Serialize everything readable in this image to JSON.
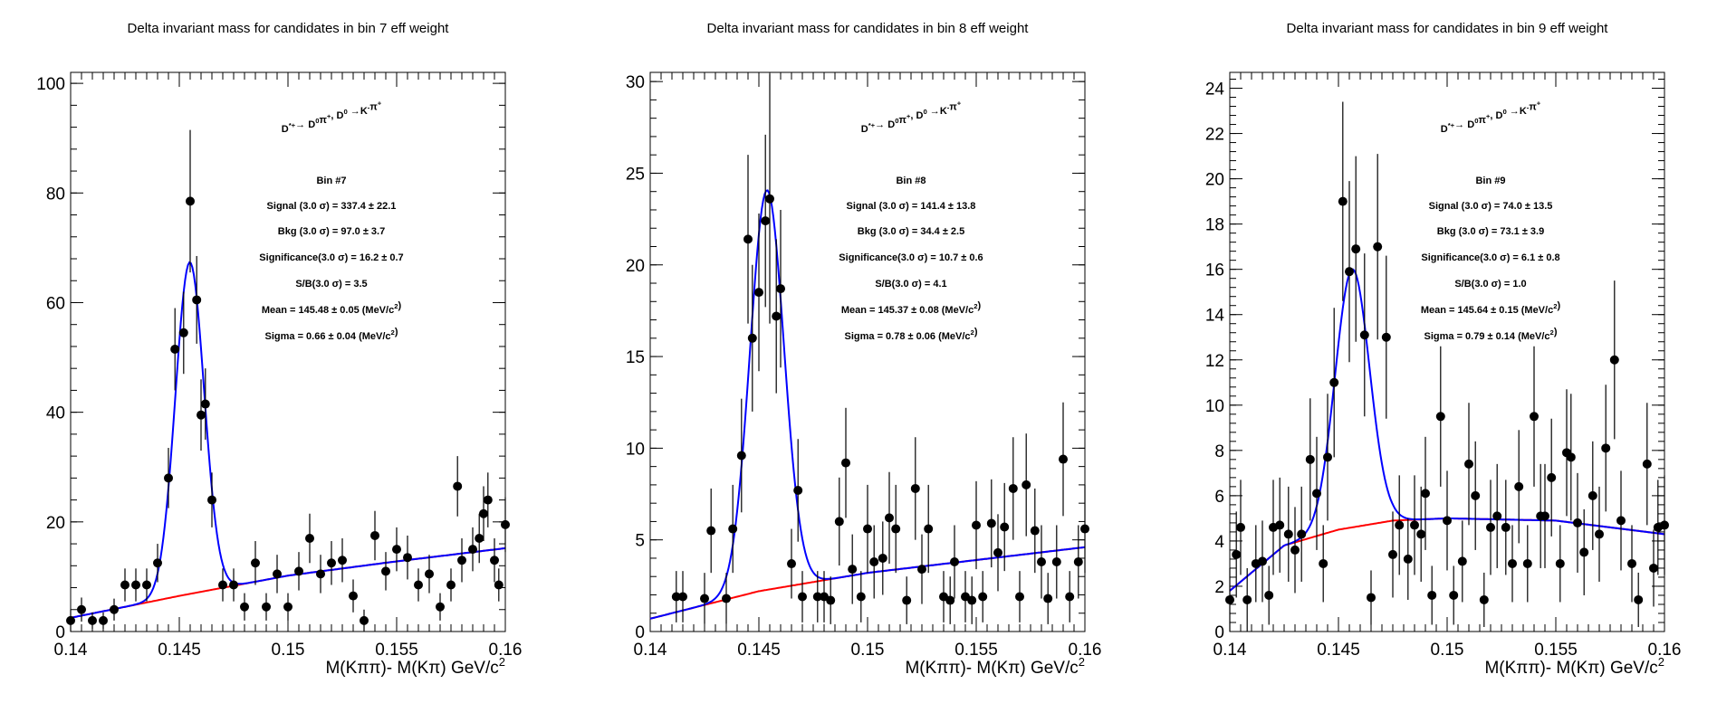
{
  "chart_data": [
    {
      "type": "scatter",
      "title": "Delta invariant mass for candidates in bin 7 eff weight",
      "xlabel": "M(Kππ)- M(Kπ) GeV/c",
      "xlabel_sup": "2",
      "xlim": [
        0.14,
        0.16
      ],
      "ylim": [
        0,
        102
      ],
      "x_ticks": [
        0.14,
        0.145,
        0.15,
        0.155,
        0.16
      ],
      "x_tick_labels": [
        "0.14",
        "0.145",
        "0.15",
        "0.155",
        "0.16"
      ],
      "y_ticks": [
        0,
        20,
        40,
        60,
        80,
        100
      ],
      "y_tick_labels": [
        "0",
        "20",
        "40",
        "60",
        "80",
        "100"
      ],
      "legend": {
        "decay": "D*+→ D0π+, D0 →K-π+",
        "bin": "Bin #7",
        "signal": "Signal (3.0 σ) =  337.4 ± 22.1",
        "bkg": "Bkg (3.0 σ) =  97.0 ± 3.7",
        "significance": "Significance(3.0 σ) =  16.2 ± 0.7",
        "sb": "S/B(3.0 σ) =  3.5",
        "mean": "Mean = 145.48 ± 0.05 (MeV/c2)",
        "sigma": "Sigma = 0.66 ± 0.04 (MeV/c2)"
      },
      "fit": {
        "mean": 0.14548,
        "sigma": 0.00066,
        "amp": 60.5,
        "bkg": [
          [
            0.14,
            2.5
          ],
          [
            0.145,
            6.5
          ],
          [
            0.15,
            10.2
          ],
          [
            0.155,
            12.8
          ],
          [
            0.16,
            15.2
          ]
        ]
      },
      "points": [
        {
          "x": 0.14,
          "y": 2.0,
          "e": 2.0
        },
        {
          "x": 0.1405,
          "y": 4.0,
          "e": 2.2
        },
        {
          "x": 0.141,
          "y": 2.0,
          "e": 1.5
        },
        {
          "x": 0.1415,
          "y": 2.0,
          "e": 1.5
        },
        {
          "x": 0.142,
          "y": 4.0,
          "e": 2.0
        },
        {
          "x": 0.1425,
          "y": 8.5,
          "e": 3.0
        },
        {
          "x": 0.143,
          "y": 8.5,
          "e": 3.0
        },
        {
          "x": 0.1435,
          "y": 8.5,
          "e": 3.0
        },
        {
          "x": 0.144,
          "y": 12.5,
          "e": 3.5
        },
        {
          "x": 0.1445,
          "y": 28.0,
          "e": 5.5
        },
        {
          "x": 0.1448,
          "y": 51.5,
          "e": 7.5
        },
        {
          "x": 0.1452,
          "y": 54.5,
          "e": 7.5
        },
        {
          "x": 0.1455,
          "y": 78.5,
          "e": 13.0
        },
        {
          "x": 0.1458,
          "y": 60.5,
          "e": 8.0
        },
        {
          "x": 0.146,
          "y": 39.5,
          "e": 6.5
        },
        {
          "x": 0.1462,
          "y": 41.5,
          "e": 6.5
        },
        {
          "x": 0.1465,
          "y": 24.0,
          "e": 5.0
        },
        {
          "x": 0.147,
          "y": 8.5,
          "e": 3.0
        },
        {
          "x": 0.1475,
          "y": 8.5,
          "e": 3.0
        },
        {
          "x": 0.148,
          "y": 4.5,
          "e": 2.5
        },
        {
          "x": 0.1485,
          "y": 12.5,
          "e": 4.0
        },
        {
          "x": 0.149,
          "y": 4.5,
          "e": 2.5
        },
        {
          "x": 0.1495,
          "y": 10.5,
          "e": 3.5
        },
        {
          "x": 0.15,
          "y": 4.5,
          "e": 2.5
        },
        {
          "x": 0.1505,
          "y": 11.0,
          "e": 3.5
        },
        {
          "x": 0.151,
          "y": 17.0,
          "e": 4.5
        },
        {
          "x": 0.1515,
          "y": 10.5,
          "e": 3.5
        },
        {
          "x": 0.152,
          "y": 12.5,
          "e": 4.0
        },
        {
          "x": 0.1525,
          "y": 13.0,
          "e": 4.0
        },
        {
          "x": 0.153,
          "y": 6.5,
          "e": 3.0
        },
        {
          "x": 0.1535,
          "y": 2.0,
          "e": 2.0
        },
        {
          "x": 0.154,
          "y": 17.5,
          "e": 4.5
        },
        {
          "x": 0.1545,
          "y": 11.0,
          "e": 3.5
        },
        {
          "x": 0.155,
          "y": 15.0,
          "e": 4.0
        },
        {
          "x": 0.1555,
          "y": 13.5,
          "e": 4.0
        },
        {
          "x": 0.156,
          "y": 8.5,
          "e": 3.0
        },
        {
          "x": 0.1565,
          "y": 10.5,
          "e": 3.5
        },
        {
          "x": 0.157,
          "y": 4.5,
          "e": 2.5
        },
        {
          "x": 0.1575,
          "y": 8.5,
          "e": 3.0
        },
        {
          "x": 0.158,
          "y": 13.0,
          "e": 4.0
        },
        {
          "x": 0.1585,
          "y": 15.0,
          "e": 4.0
        },
        {
          "x": 0.159,
          "y": 21.5,
          "e": 5.0
        },
        {
          "x": 0.1595,
          "y": 13.0,
          "e": 4.0
        },
        {
          "x": 0.16,
          "y": 19.5,
          "e": 5.0
        },
        {
          "x": 0.1578,
          "y": 26.5,
          "e": 5.5
        },
        {
          "x": 0.1588,
          "y": 17.0,
          "e": 4.5
        },
        {
          "x": 0.1592,
          "y": 24.0,
          "e": 5.0
        },
        {
          "x": 0.1597,
          "y": 8.5,
          "e": 3.0
        }
      ]
    },
    {
      "type": "scatter",
      "title": "Delta invariant mass for candidates in bin 8 eff weight",
      "xlabel": "M(Kππ)- M(Kπ) GeV/c",
      "xlabel_sup": "2",
      "xlim": [
        0.14,
        0.16
      ],
      "ylim": [
        0,
        30.5
      ],
      "x_ticks": [
        0.14,
        0.145,
        0.15,
        0.155,
        0.16
      ],
      "x_tick_labels": [
        "0.14",
        "0.145",
        "0.15",
        "0.155",
        "0.16"
      ],
      "y_ticks": [
        0,
        5,
        10,
        15,
        20,
        25,
        30
      ],
      "y_tick_labels": [
        "0",
        "5",
        "10",
        "15",
        "20",
        "25",
        "30"
      ],
      "legend": {
        "decay": "D*+→ D0π+, D0 →K-π+",
        "bin": "Bin #8",
        "signal": "Signal (3.0 σ) =  141.4 ± 13.8",
        "bkg": "Bkg (3.0 σ) =  34.4 ± 2.5",
        "significance": "Significance(3.0 σ) =  10.7 ± 0.6",
        "sb": "S/B(3.0 σ) =  4.1",
        "mean": "Mean = 145.37 ± 0.08 (MeV/c2)",
        "sigma": "Sigma = 0.78 ± 0.06 (MeV/c2)"
      },
      "fit": {
        "mean": 0.14537,
        "sigma": 0.00078,
        "amp": 21.8,
        "bkg": [
          [
            0.14,
            0.7
          ],
          [
            0.145,
            2.2
          ],
          [
            0.15,
            3.2
          ],
          [
            0.155,
            3.9
          ],
          [
            0.16,
            4.6
          ]
        ]
      },
      "points": [
        {
          "x": 0.1412,
          "y": 1.9,
          "e": 1.4
        },
        {
          "x": 0.1415,
          "y": 1.9,
          "e": 1.4
        },
        {
          "x": 0.1425,
          "y": 1.8,
          "e": 1.4
        },
        {
          "x": 0.1428,
          "y": 5.5,
          "e": 2.3
        },
        {
          "x": 0.1435,
          "y": 1.8,
          "e": 1.4
        },
        {
          "x": 0.1438,
          "y": 5.6,
          "e": 2.4
        },
        {
          "x": 0.1442,
          "y": 9.6,
          "e": 3.1
        },
        {
          "x": 0.1445,
          "y": 21.4,
          "e": 4.6
        },
        {
          "x": 0.1447,
          "y": 16.0,
          "e": 4.0
        },
        {
          "x": 0.145,
          "y": 18.5,
          "e": 4.3
        },
        {
          "x": 0.1453,
          "y": 22.4,
          "e": 4.7
        },
        {
          "x": 0.1455,
          "y": 23.6,
          "e": 6.8
        },
        {
          "x": 0.1458,
          "y": 17.2,
          "e": 4.2
        },
        {
          "x": 0.146,
          "y": 18.7,
          "e": 4.3
        },
        {
          "x": 0.1465,
          "y": 3.7,
          "e": 1.9
        },
        {
          "x": 0.1468,
          "y": 7.7,
          "e": 2.8
        },
        {
          "x": 0.147,
          "y": 1.9,
          "e": 1.4
        },
        {
          "x": 0.1477,
          "y": 1.9,
          "e": 1.4
        },
        {
          "x": 0.148,
          "y": 1.9,
          "e": 1.4
        },
        {
          "x": 0.1483,
          "y": 1.7,
          "e": 1.3
        },
        {
          "x": 0.1487,
          "y": 6.0,
          "e": 2.4
        },
        {
          "x": 0.149,
          "y": 9.2,
          "e": 3.0
        },
        {
          "x": 0.1493,
          "y": 3.4,
          "e": 1.9
        },
        {
          "x": 0.1497,
          "y": 1.9,
          "e": 1.4
        },
        {
          "x": 0.15,
          "y": 5.6,
          "e": 2.4
        },
        {
          "x": 0.1503,
          "y": 3.8,
          "e": 2.0
        },
        {
          "x": 0.1507,
          "y": 4.0,
          "e": 2.0
        },
        {
          "x": 0.151,
          "y": 6.2,
          "e": 2.5
        },
        {
          "x": 0.1513,
          "y": 5.6,
          "e": 2.4
        },
        {
          "x": 0.1518,
          "y": 1.7,
          "e": 1.3
        },
        {
          "x": 0.1522,
          "y": 7.8,
          "e": 2.8
        },
        {
          "x": 0.1525,
          "y": 3.4,
          "e": 1.9
        },
        {
          "x": 0.1528,
          "y": 5.6,
          "e": 2.4
        },
        {
          "x": 0.1535,
          "y": 1.9,
          "e": 1.4
        },
        {
          "x": 0.1538,
          "y": 1.7,
          "e": 1.3
        },
        {
          "x": 0.154,
          "y": 3.8,
          "e": 2.0
        },
        {
          "x": 0.1545,
          "y": 1.9,
          "e": 1.4
        },
        {
          "x": 0.1548,
          "y": 1.7,
          "e": 1.3
        },
        {
          "x": 0.155,
          "y": 5.8,
          "e": 2.4
        },
        {
          "x": 0.1553,
          "y": 1.9,
          "e": 1.4
        },
        {
          "x": 0.1557,
          "y": 5.9,
          "e": 2.4
        },
        {
          "x": 0.156,
          "y": 4.3,
          "e": 2.1
        },
        {
          "x": 0.1563,
          "y": 5.7,
          "e": 2.4
        },
        {
          "x": 0.1567,
          "y": 7.8,
          "e": 2.8
        },
        {
          "x": 0.157,
          "y": 1.9,
          "e": 1.4
        },
        {
          "x": 0.1573,
          "y": 8.0,
          "e": 2.8
        },
        {
          "x": 0.1577,
          "y": 5.5,
          "e": 2.3
        },
        {
          "x": 0.158,
          "y": 3.8,
          "e": 2.0
        },
        {
          "x": 0.1583,
          "y": 1.8,
          "e": 1.4
        },
        {
          "x": 0.1587,
          "y": 3.8,
          "e": 2.0
        },
        {
          "x": 0.159,
          "y": 9.4,
          "e": 3.1
        },
        {
          "x": 0.1593,
          "y": 1.9,
          "e": 1.4
        },
        {
          "x": 0.1597,
          "y": 3.8,
          "e": 2.0
        },
        {
          "x": 0.16,
          "y": 5.6,
          "e": 2.4
        }
      ]
    },
    {
      "type": "scatter",
      "title": "Delta invariant mass for candidates in bin 9 eff weight",
      "xlabel": "M(Kππ)- M(Kπ) GeV/c",
      "xlabel_sup": "2",
      "xlim": [
        0.14,
        0.16
      ],
      "ylim": [
        0,
        24.7
      ],
      "x_ticks": [
        0.14,
        0.145,
        0.15,
        0.155,
        0.16
      ],
      "x_tick_labels": [
        "0.14",
        "0.145",
        "0.15",
        "0.155",
        "0.16"
      ],
      "y_ticks": [
        0,
        2,
        4,
        6,
        8,
        10,
        12,
        14,
        16,
        18,
        20,
        22,
        24
      ],
      "y_tick_labels": [
        "0",
        "2",
        "4",
        "6",
        "8",
        "10",
        "12",
        "14",
        "16",
        "18",
        "20",
        "22",
        "24"
      ],
      "legend": {
        "decay": "D*+→ D0π+, D0 →K-π+",
        "bin": "Bin #9",
        "signal": "Signal (3.0 σ) =  74.0 ± 13.5",
        "bkg": "Bkg (3.0 σ) =  73.1 ± 3.9",
        "significance": "Significance(3.0 σ) =  6.1 ± 0.8",
        "sb": "S/B(3.0 σ) =  1.0",
        "mean": "Mean = 145.64 ± 0.15 (MeV/c2)",
        "sigma": "Sigma = 0.79 ± 0.14 (MeV/c2)"
      },
      "fit": {
        "mean": 0.14564,
        "sigma": 0.00079,
        "amp": 11.4,
        "bkg": [
          [
            0.14,
            1.8
          ],
          [
            0.1425,
            3.8
          ],
          [
            0.145,
            4.5
          ],
          [
            0.1475,
            4.9
          ],
          [
            0.15,
            5.0
          ],
          [
            0.155,
            4.9
          ],
          [
            0.16,
            4.3
          ]
        ]
      },
      "points": [
        {
          "x": 0.14,
          "y": 1.4,
          "e": 1.4
        },
        {
          "x": 0.1403,
          "y": 3.4,
          "e": 1.9
        },
        {
          "x": 0.1405,
          "y": 4.6,
          "e": 2.1
        },
        {
          "x": 0.1408,
          "y": 1.4,
          "e": 1.4
        },
        {
          "x": 0.1412,
          "y": 3.0,
          "e": 1.7
        },
        {
          "x": 0.1415,
          "y": 3.1,
          "e": 1.8
        },
        {
          "x": 0.1418,
          "y": 1.6,
          "e": 1.3
        },
        {
          "x": 0.142,
          "y": 4.6,
          "e": 2.1
        },
        {
          "x": 0.1423,
          "y": 4.7,
          "e": 2.1
        },
        {
          "x": 0.1427,
          "y": 4.3,
          "e": 2.1
        },
        {
          "x": 0.143,
          "y": 3.6,
          "e": 1.9
        },
        {
          "x": 0.1433,
          "y": 4.3,
          "e": 2.1
        },
        {
          "x": 0.1437,
          "y": 7.6,
          "e": 2.7
        },
        {
          "x": 0.144,
          "y": 6.1,
          "e": 2.5
        },
        {
          "x": 0.1443,
          "y": 3.0,
          "e": 1.7
        },
        {
          "x": 0.1445,
          "y": 7.7,
          "e": 2.8
        },
        {
          "x": 0.1448,
          "y": 11.0,
          "e": 3.3
        },
        {
          "x": 0.1452,
          "y": 19.0,
          "e": 4.4
        },
        {
          "x": 0.1455,
          "y": 15.9,
          "e": 4.0
        },
        {
          "x": 0.1458,
          "y": 16.9,
          "e": 4.1
        },
        {
          "x": 0.1462,
          "y": 13.1,
          "e": 3.6
        },
        {
          "x": 0.1465,
          "y": 1.5,
          "e": 1.2
        },
        {
          "x": 0.1468,
          "y": 17.0,
          "e": 4.1
        },
        {
          "x": 0.1472,
          "y": 13.0,
          "e": 3.6
        },
        {
          "x": 0.1475,
          "y": 3.4,
          "e": 1.9
        },
        {
          "x": 0.1478,
          "y": 4.7,
          "e": 2.2
        },
        {
          "x": 0.1482,
          "y": 3.2,
          "e": 1.8
        },
        {
          "x": 0.1485,
          "y": 4.7,
          "e": 2.2
        },
        {
          "x": 0.1488,
          "y": 4.3,
          "e": 2.1
        },
        {
          "x": 0.149,
          "y": 6.1,
          "e": 2.5
        },
        {
          "x": 0.1493,
          "y": 1.6,
          "e": 1.3
        },
        {
          "x": 0.1497,
          "y": 9.5,
          "e": 3.1
        },
        {
          "x": 0.15,
          "y": 4.9,
          "e": 2.2
        },
        {
          "x": 0.1503,
          "y": 1.6,
          "e": 1.3
        },
        {
          "x": 0.1507,
          "y": 3.1,
          "e": 1.8
        },
        {
          "x": 0.151,
          "y": 7.4,
          "e": 2.7
        },
        {
          "x": 0.1513,
          "y": 6.0,
          "e": 2.4
        },
        {
          "x": 0.1517,
          "y": 1.4,
          "e": 1.2
        },
        {
          "x": 0.152,
          "y": 4.6,
          "e": 2.1
        },
        {
          "x": 0.1523,
          "y": 5.1,
          "e": 2.3
        },
        {
          "x": 0.1527,
          "y": 4.6,
          "e": 2.1
        },
        {
          "x": 0.153,
          "y": 3.0,
          "e": 1.7
        },
        {
          "x": 0.1533,
          "y": 6.4,
          "e": 2.5
        },
        {
          "x": 0.1537,
          "y": 3.0,
          "e": 1.7
        },
        {
          "x": 0.154,
          "y": 9.5,
          "e": 3.1
        },
        {
          "x": 0.1543,
          "y": 5.1,
          "e": 2.3
        },
        {
          "x": 0.1545,
          "y": 5.1,
          "e": 2.3
        },
        {
          "x": 0.1548,
          "y": 6.8,
          "e": 2.6
        },
        {
          "x": 0.1552,
          "y": 3.0,
          "e": 1.7
        },
        {
          "x": 0.1555,
          "y": 7.9,
          "e": 2.8
        },
        {
          "x": 0.1557,
          "y": 7.7,
          "e": 2.8
        },
        {
          "x": 0.156,
          "y": 4.8,
          "e": 2.2
        },
        {
          "x": 0.1563,
          "y": 3.5,
          "e": 1.9
        },
        {
          "x": 0.1567,
          "y": 6.0,
          "e": 2.4
        },
        {
          "x": 0.157,
          "y": 4.3,
          "e": 2.1
        },
        {
          "x": 0.1573,
          "y": 8.1,
          "e": 2.8
        },
        {
          "x": 0.1577,
          "y": 12.0,
          "e": 3.5
        },
        {
          "x": 0.158,
          "y": 4.9,
          "e": 2.2
        },
        {
          "x": 0.1585,
          "y": 3.0,
          "e": 1.7
        },
        {
          "x": 0.1588,
          "y": 1.4,
          "e": 1.2
        },
        {
          "x": 0.1592,
          "y": 7.4,
          "e": 2.7
        },
        {
          "x": 0.1595,
          "y": 2.8,
          "e": 1.7
        },
        {
          "x": 0.1597,
          "y": 4.6,
          "e": 2.1
        },
        {
          "x": 0.16,
          "y": 4.7,
          "e": 2.2
        }
      ]
    }
  ]
}
